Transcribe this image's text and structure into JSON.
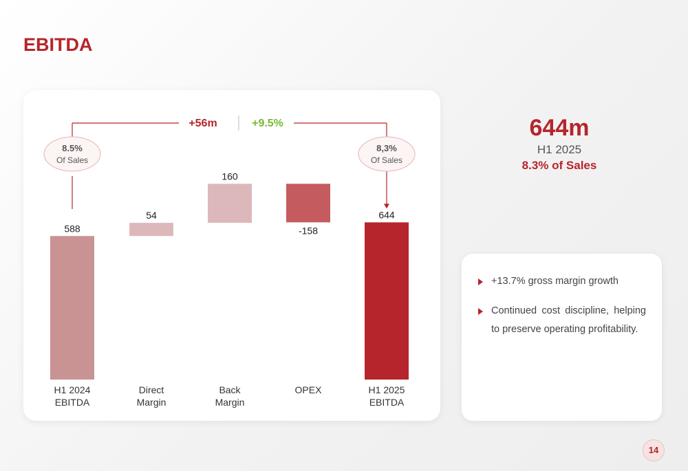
{
  "page": {
    "title": "EBITDA",
    "page_number": "14"
  },
  "colors": {
    "brand": "#b5252b",
    "green": "#7ab733",
    "bar_start": "#c99293",
    "bar_increase": "#ddb8bb",
    "bar_decrease": "#c45c5f",
    "bar_end": "#b5252b"
  },
  "chart_data": {
    "type": "bar",
    "subtype": "waterfall",
    "categories": [
      "H1 2024\nEBITDA",
      "Direct\nMargin",
      "Back\nMargin",
      "OPEX",
      "H1 2025\nEBITDA"
    ],
    "values": [
      588,
      54,
      160,
      -158,
      644
    ],
    "value_labels": [
      "588",
      "54",
      "160",
      "-158",
      "644"
    ],
    "bar_kinds": [
      "total",
      "increase",
      "increase",
      "decrease",
      "total"
    ],
    "bridge": {
      "delta_abs": "+56m",
      "delta_pct": "+9.5%"
    },
    "start_badge": {
      "value": "8.5%",
      "caption": "Of Sales"
    },
    "end_badge": {
      "value": "8,3%",
      "caption": "Of Sales"
    },
    "ylim": [
      0,
      820
    ],
    "grid": false,
    "legend": "none"
  },
  "kpi": {
    "value": "644m",
    "period": "H1 2025",
    "share": "8.3% of Sales"
  },
  "notes": [
    "+13.7% gross margin growth",
    "Continued cost discipline, helping to preserve operating profitability."
  ]
}
